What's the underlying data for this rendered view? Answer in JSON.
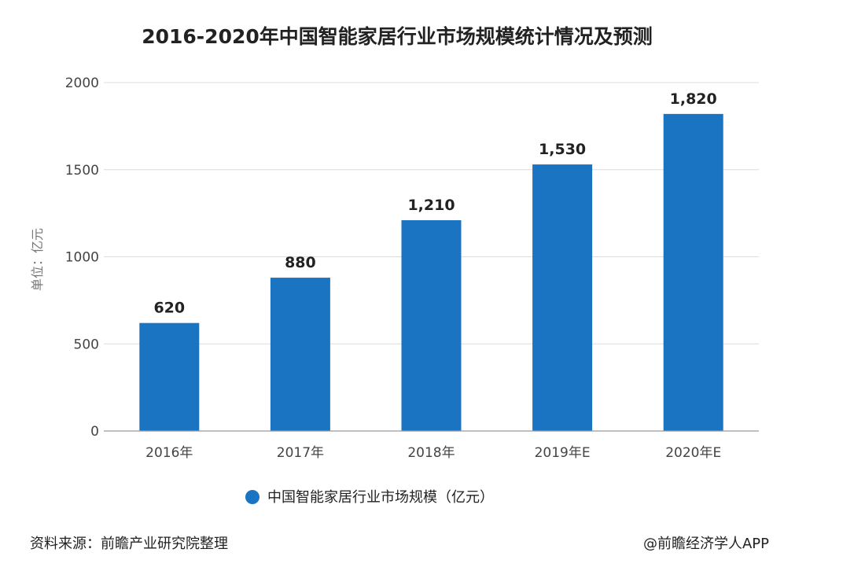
{
  "chart_data": {
    "type": "bar",
    "title": "2016-2020年中国智能家居行业市场规模统计情况及预测",
    "categories": [
      "2016年",
      "2017年",
      "2018年",
      "2019年E",
      "2020年E"
    ],
    "series": [
      {
        "name": "中国智能家居行业市场规模（亿元）",
        "values": [
          620,
          880,
          1210,
          1530,
          1820
        ],
        "labels": [
          "620",
          "880",
          "1,210",
          "1,530",
          "1,820"
        ],
        "color": "#1a74c1"
      }
    ],
    "ylabel": "单位：亿元",
    "ylim": [
      0,
      2000
    ],
    "yticks": [
      0,
      500,
      1000,
      1500,
      2000
    ],
    "grid": true,
    "legend": "bottom"
  },
  "footer": {
    "source": "资料来源：前瞻产业研究院整理",
    "credit": "@前瞻经济学人APP"
  }
}
